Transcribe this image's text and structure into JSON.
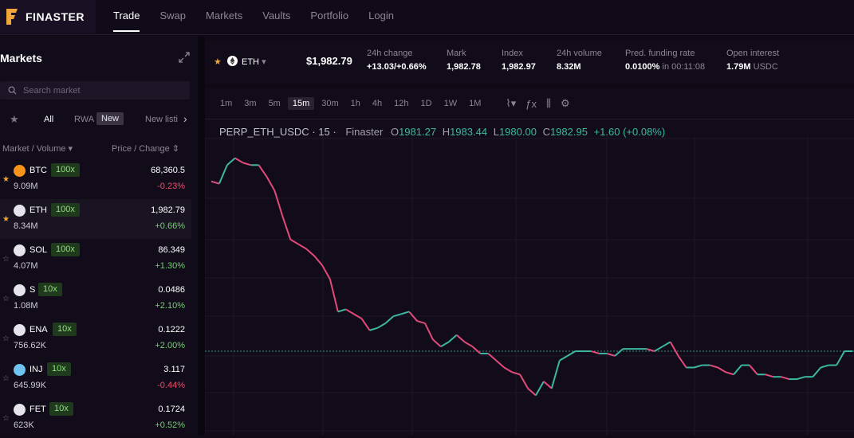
{
  "brand": {
    "name": "FINASTER",
    "accent": "#f0a73a"
  },
  "nav": [
    {
      "label": "Trade",
      "active": true
    },
    {
      "label": "Swap"
    },
    {
      "label": "Markets"
    },
    {
      "label": "Vaults"
    },
    {
      "label": "Portfolio"
    },
    {
      "label": "Login"
    }
  ],
  "markets_panel": {
    "title": "Markets",
    "search_placeholder": "Search market",
    "filters": {
      "all": "All",
      "rwa": "RWA",
      "new_badge": "New",
      "new_listings": "New listi"
    },
    "col_left": "Market / Volume",
    "col_right": "Price / Change",
    "rows": [
      {
        "symbol": "BTC",
        "leverage": "100x",
        "volume": "9.09M",
        "price": "68,360.5",
        "change": "-0.23%",
        "dir": "down",
        "fav": true,
        "icon_color": "#f7931a",
        "icon": "bitcoin-icon"
      },
      {
        "symbol": "ETH",
        "leverage": "100x",
        "volume": "8.34M",
        "price": "1,982.79",
        "change": "+0.66%",
        "dir": "up",
        "fav": true,
        "icon_color": "#e6e3ec",
        "icon": "ethereum-icon",
        "selected": true
      },
      {
        "symbol": "SOL",
        "leverage": "100x",
        "volume": "4.07M",
        "price": "86.349",
        "change": "+1.30%",
        "dir": "up",
        "fav": false,
        "icon_color": "#e6e3ec",
        "icon": "solana-icon"
      },
      {
        "symbol": "S",
        "leverage": "10x",
        "volume": "1.08M",
        "price": "0.0486",
        "change": "+2.10%",
        "dir": "up",
        "fav": false,
        "icon_color": "#e6e3ec",
        "icon": "sonic-icon"
      },
      {
        "symbol": "ENA",
        "leverage": "10x",
        "volume": "756.62K",
        "price": "0.1222",
        "change": "+2.00%",
        "dir": "up",
        "fav": false,
        "icon_color": "#e6e3ec",
        "icon": "ethena-icon"
      },
      {
        "symbol": "INJ",
        "leverage": "10x",
        "volume": "645.99K",
        "price": "3.117",
        "change": "-0.44%",
        "dir": "down",
        "fav": false,
        "icon_color": "#6fc3f0",
        "icon": "injective-icon"
      },
      {
        "symbol": "FET",
        "leverage": "10x",
        "volume": "623K",
        "price": "0.1724",
        "change": "+0.52%",
        "dir": "up",
        "fav": false,
        "icon_color": "#e6e3ec",
        "icon": "fetch-icon"
      }
    ]
  },
  "ticker": {
    "symbol": "ETH",
    "price": "$1,982.79",
    "change_label": "24h change",
    "change_value": "+13.03/+0.66%",
    "mark_label": "Mark",
    "mark_value": "1,982.78",
    "index_label": "Index",
    "index_value": "1,982.97",
    "volume_label": "24h volume",
    "volume_value": "8.32M",
    "funding_label": "Pred. funding rate",
    "funding_value": "0.0100%",
    "funding_in": "in 00:11:08",
    "oi_label": "Open interest",
    "oi_value": "1.79M",
    "oi_unit": "USDC"
  },
  "chart_toolbar": {
    "timeframes": [
      "1m",
      "3m",
      "5m",
      "15m",
      "30m",
      "1h",
      "4h",
      "12h",
      "1D",
      "1W",
      "1M"
    ],
    "active": "15m"
  },
  "chart_legend": {
    "symbol": "PERP_ETH_USDC",
    "interval": "15",
    "source": "Finaster",
    "o_label": "O",
    "o": "1981.27",
    "h_label": "H",
    "h": "1983.44",
    "l_label": "L",
    "l": "1980.00",
    "c_label": "C",
    "c": "1982.95",
    "change": "+1.60 (+0.08%)"
  },
  "chart_data": {
    "type": "line",
    "x": [
      0,
      10,
      20,
      30,
      40,
      50,
      60,
      70,
      80,
      90,
      100,
      110,
      120,
      130,
      140,
      150,
      160,
      170,
      180,
      190,
      200,
      210,
      220,
      230,
      240,
      250,
      260,
      270,
      280,
      290,
      300,
      310,
      320,
      330,
      340,
      350,
      360,
      370,
      380,
      390,
      400,
      410,
      420,
      430,
      440,
      450,
      460,
      470,
      480,
      490,
      500,
      510,
      520,
      530,
      540,
      550,
      560,
      570,
      580,
      590,
      600,
      610,
      620,
      630,
      640,
      650,
      660,
      670,
      680,
      690,
      700,
      710,
      720,
      730,
      740,
      750,
      760,
      770,
      780,
      790,
      800,
      810
    ],
    "values": [
      2049,
      2048,
      2056,
      2059,
      2057,
      2056,
      2056,
      2051,
      2045,
      2034,
      2024,
      2022,
      2020,
      2017,
      2013,
      2007,
      1993,
      1994,
      1992,
      1990,
      1985,
      1986,
      1988,
      1991,
      1992,
      1993,
      1989,
      1988,
      1981,
      1978,
      1980,
      1983,
      1980,
      1978,
      1975,
      1975,
      1972,
      1969,
      1967,
      1966,
      1960,
      1957,
      1963,
      1960,
      1972,
      1974,
      1976,
      1976,
      1976,
      1975,
      1975,
      1974,
      1977,
      1977,
      1977,
      1977,
      1976,
      1978,
      1980,
      1974,
      1969,
      1969,
      1970,
      1970,
      1969,
      1967,
      1966,
      1970,
      1970,
      1966,
      1966,
      1965,
      1965,
      1964,
      1964,
      1965,
      1965,
      1969,
      1970,
      1970,
      1976,
      1976
    ],
    "xlabel": "",
    "ylabel": ""
  }
}
